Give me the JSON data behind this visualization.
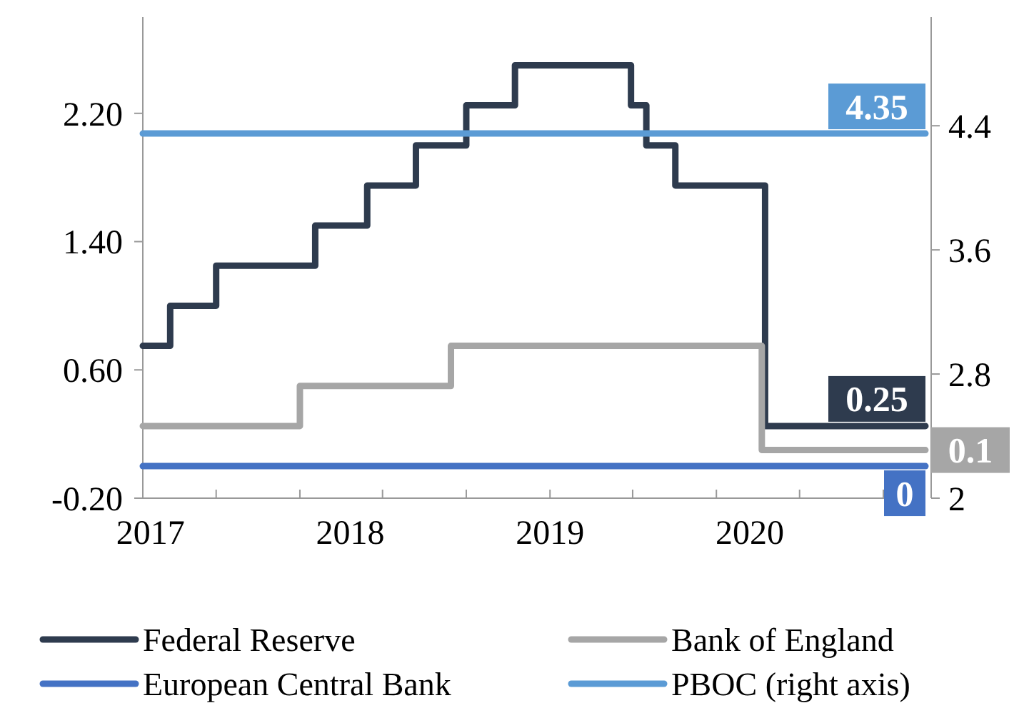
{
  "chart_data": {
    "type": "step",
    "xlim": [
      "2017-01-01",
      "2020-12-01"
    ],
    "xticks": [
      {
        "value": "2017-01-15",
        "label": "2017"
      },
      {
        "value": "2018-01-15",
        "label": "2018"
      },
      {
        "value": "2019-01-15",
        "label": "2019"
      },
      {
        "value": "2020-01-15",
        "label": "2020"
      },
      {
        "value": "2017-05-15",
        "label": null
      },
      {
        "value": "2017-10-15",
        "label": null
      },
      {
        "value": "2018-03-15",
        "label": null
      },
      {
        "value": "2018-08-15",
        "label": null
      },
      {
        "value": "2019-01-15",
        "label": null
      },
      {
        "value": "2019-06-15",
        "label": null
      },
      {
        "value": "2019-11-15",
        "label": null
      },
      {
        "value": "2020-04-15",
        "label": null
      },
      {
        "value": "2020-09-15",
        "label": null
      }
    ],
    "ylim": [
      -0.2,
      2.8
    ],
    "yticks": [
      {
        "value": -0.2,
        "label": "-0.20"
      },
      {
        "value": 0.6,
        "label": "0.60"
      },
      {
        "value": 1.4,
        "label": "1.40"
      },
      {
        "value": 2.2,
        "label": "2.20"
      }
    ],
    "y2lim": [
      2,
      5.1
    ],
    "y2ticks": [
      2,
      2.8,
      3.6,
      4.4
    ],
    "legend": "bottom",
    "series": [
      {
        "name": "Federal Reserve",
        "color": "#2e3b4e",
        "x": [
          "2017-01-01",
          "2017-02-20",
          "2017-05-15",
          "2017-11-12",
          "2018-02-15",
          "2018-05-15",
          "2018-08-15",
          "2018-11-12",
          "2019-06-12",
          "2019-07-10",
          "2019-09-01",
          "2020-02-12",
          "2020-12-01"
        ],
        "values": [
          0.75,
          1.0,
          1.25,
          1.5,
          1.75,
          2.0,
          2.25,
          2.5,
          2.25,
          2.0,
          1.75,
          0.25,
          0.25
        ],
        "value_labels": [
          null,
          null,
          null,
          null,
          null,
          null,
          null,
          null,
          null,
          null,
          null,
          null,
          "0.25"
        ]
      },
      {
        "name": "Bank of England",
        "color": "#a6a6a6",
        "x": [
          "2017-01-01",
          "2017-10-15",
          "2018-07-18",
          "2020-02-06",
          "2020-12-01"
        ],
        "values": [
          0.25,
          0.5,
          0.75,
          0.1,
          0.1
        ],
        "value_labels": [
          null,
          null,
          null,
          null,
          "0.1"
        ]
      },
      {
        "name": "European Central Bank",
        "color": "#4472c4",
        "x": [
          "2017-01-01",
          "2020-12-01"
        ],
        "values": [
          0,
          0
        ],
        "value_labels": [
          null,
          "0"
        ]
      },
      {
        "name": "PBOC (right axis)",
        "color": "#5b9bd5",
        "axis": "y2",
        "x": [
          "2017-01-01",
          "2020-12-01"
        ],
        "values": [
          4.35,
          4.35
        ],
        "value_labels": [
          null,
          "4.35"
        ]
      }
    ]
  }
}
